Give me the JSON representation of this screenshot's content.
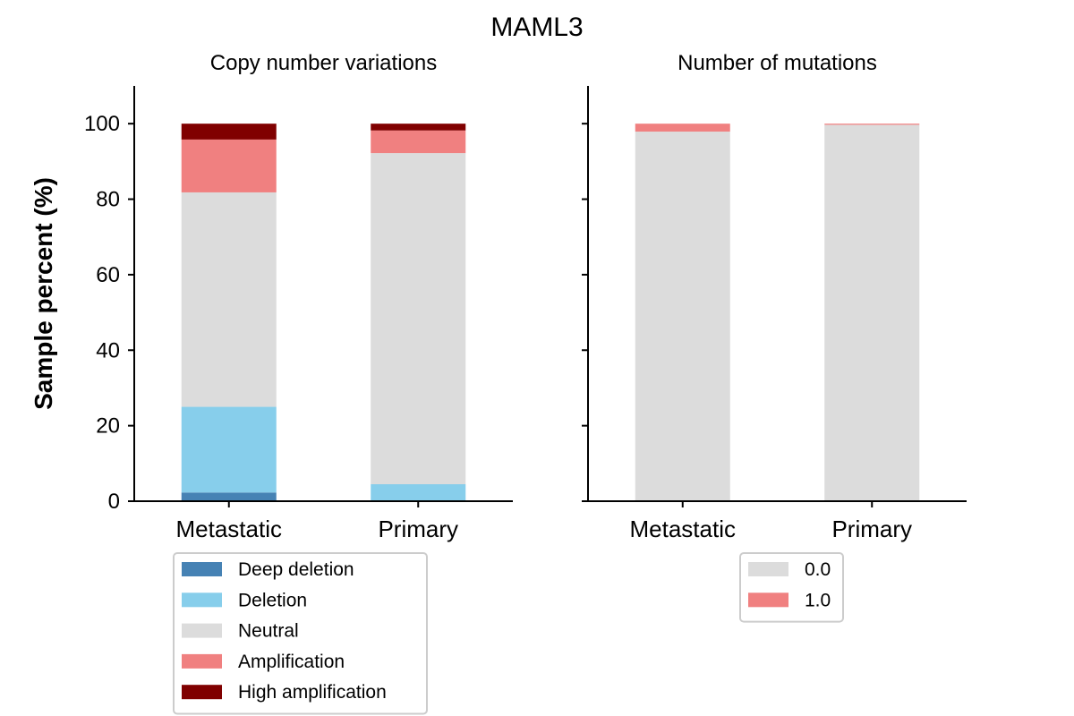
{
  "figure": {
    "title": "MAML3"
  },
  "ylabel": "Sample percent (%)",
  "chart_data": [
    {
      "type": "bar",
      "stacked": true,
      "title": "Copy number variations",
      "ylabel": "Sample percent (%)",
      "ylim": [
        0,
        110
      ],
      "yticks": [
        0,
        20,
        40,
        60,
        80,
        100
      ],
      "ytick_labels": [
        "0",
        "20",
        "40",
        "60",
        "80",
        "100"
      ],
      "categories": [
        "Metastatic",
        "Primary"
      ],
      "grid": false,
      "legend_position": "below",
      "series": [
        {
          "name": "Deep deletion",
          "color": "#4682b4",
          "values": [
            2.3,
            0.0
          ]
        },
        {
          "name": "Deletion",
          "color": "#87ceeb",
          "values": [
            22.7,
            4.5
          ]
        },
        {
          "name": "Neutral",
          "color": "#dcdcdc",
          "values": [
            56.8,
            87.7
          ]
        },
        {
          "name": "Amplification",
          "color": "#f08080",
          "values": [
            14.0,
            6.0
          ]
        },
        {
          "name": "High amplification",
          "color": "#800000",
          "values": [
            4.2,
            1.8
          ]
        }
      ]
    },
    {
      "type": "bar",
      "stacked": true,
      "title": "Number of mutations",
      "ylim": [
        0,
        110
      ],
      "yticks": [
        0,
        20,
        40,
        60,
        80,
        100
      ],
      "categories": [
        "Metastatic",
        "Primary"
      ],
      "grid": false,
      "legend_position": "below",
      "series": [
        {
          "name": "0.0",
          "color": "#dcdcdc",
          "values": [
            97.9,
            99.7
          ]
        },
        {
          "name": "1.0",
          "color": "#f08080",
          "values": [
            2.1,
            0.3
          ]
        }
      ]
    }
  ]
}
